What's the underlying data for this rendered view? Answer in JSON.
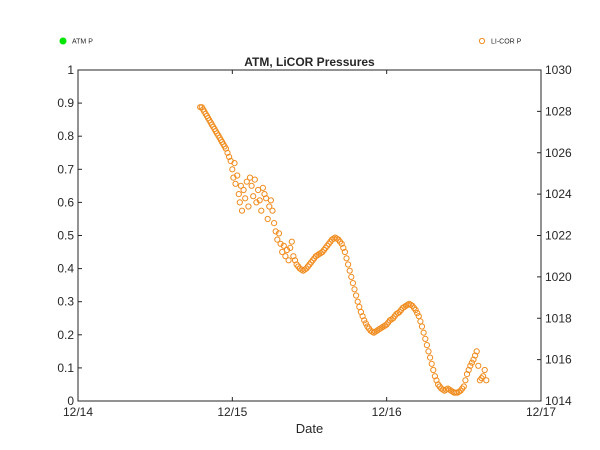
{
  "chart_data": {
    "type": "scatter",
    "title": "ATM, LiCOR Pressures",
    "xlabel": "Date",
    "ylabel_left": "",
    "ylabel_right": "",
    "x_ticks": [
      "12/14",
      "12/15",
      "12/16",
      "12/17"
    ],
    "xlim": [
      "12/14",
      "12/17"
    ],
    "y_left_ticks": [
      "0",
      "0.1",
      "0.2",
      "0.3",
      "0.4",
      "0.5",
      "0.6",
      "0.7",
      "0.8",
      "0.9",
      "1"
    ],
    "ylim_left": [
      0,
      1
    ],
    "y_right_ticks": [
      "1014",
      "1016",
      "1018",
      "1020",
      "1022",
      "1024",
      "1026",
      "1028",
      "1030"
    ],
    "ylim_right": [
      1014,
      1030
    ],
    "grid": false,
    "legend": [
      {
        "name": "ATM P",
        "color": "#00e600",
        "marker": "filled-dot",
        "placement": "top-left"
      },
      {
        "name": "LI-COR P",
        "color": "#f08c1e",
        "marker": "open-circle",
        "placement": "top-right"
      }
    ],
    "series": [
      {
        "name": "LI-COR P",
        "axis": "right",
        "color": "#f08c1e",
        "marker": "open-circle",
        "x_days_offset_note": "",
        "points": [
          [
            "12/14 19:00",
            1028.2
          ],
          [
            "12/14 19:15",
            1028.2
          ],
          [
            "12/14 23:00",
            1026.2
          ],
          [
            "12/14 23:15",
            1026.0
          ],
          [
            "12/14 23:30",
            1025.8
          ],
          [
            "12/14 23:45",
            1025.6
          ],
          [
            "12/15 00:00",
            1025.2
          ],
          [
            "12/15 00:10",
            1024.8
          ],
          [
            "12/15 00:20",
            1025.5
          ],
          [
            "12/15 00:30",
            1024.5
          ],
          [
            "12/15 00:45",
            1024.9
          ],
          [
            "12/15 01:00",
            1024.0
          ],
          [
            "12/15 01:10",
            1023.6
          ],
          [
            "12/15 01:20",
            1024.4
          ],
          [
            "12/15 01:30",
            1023.2
          ],
          [
            "12/15 01:45",
            1024.2
          ],
          [
            "12/15 02:00",
            1023.8
          ],
          [
            "12/15 02:15",
            1024.6
          ],
          [
            "12/15 02:30",
            1023.4
          ],
          [
            "12/15 02:45",
            1024.8
          ],
          [
            "12/15 03:00",
            1024.4
          ],
          [
            "12/15 03:15",
            1023.9
          ],
          [
            "12/15 03:30",
            1024.7
          ],
          [
            "12/15 03:45",
            1023.6
          ],
          [
            "12/15 04:00",
            1024.2
          ],
          [
            "12/15 04:15",
            1023.7
          ],
          [
            "12/15 04:30",
            1023.2
          ],
          [
            "12/15 04:45",
            1024.3
          ],
          [
            "12/15 05:00",
            1024.0
          ],
          [
            "12/15 05:15",
            1023.8
          ],
          [
            "12/15 05:30",
            1022.8
          ],
          [
            "12/15 05:45",
            1023.4
          ],
          [
            "12/15 06:00",
            1023.7
          ],
          [
            "12/15 06:15",
            1023.2
          ],
          [
            "12/15 06:30",
            1022.6
          ],
          [
            "12/15 06:45",
            1022.2
          ],
          [
            "12/15 07:00",
            1021.8
          ],
          [
            "12/15 07:15",
            1022.1
          ],
          [
            "12/15 07:30",
            1021.6
          ],
          [
            "12/15 07:45",
            1021.2
          ],
          [
            "12/15 08:00",
            1021.5
          ],
          [
            "12/15 08:15",
            1021.0
          ],
          [
            "12/15 08:30",
            1021.3
          ],
          [
            "12/15 08:45",
            1020.8
          ],
          [
            "12/15 09:00",
            1021.4
          ],
          [
            "12/15 09:15",
            1021.7
          ],
          [
            "12/15 09:30",
            1021.0
          ],
          [
            "12/15 09:45",
            1020.8
          ],
          [
            "12/15 10:00",
            1020.6
          ],
          [
            "12/15 10:30",
            1020.4
          ],
          [
            "12/15 11:00",
            1020.3
          ],
          [
            "12/15 11:30",
            1020.4
          ],
          [
            "12/15 12:00",
            1020.6
          ],
          [
            "12/15 12:30",
            1020.8
          ],
          [
            "12/15 13:00",
            1021.0
          ],
          [
            "12/15 13:30",
            1021.1
          ],
          [
            "12/15 14:00",
            1021.2
          ],
          [
            "12/15 14:30",
            1021.4
          ],
          [
            "12/15 15:00",
            1021.6
          ],
          [
            "12/15 15:30",
            1021.8
          ],
          [
            "12/15 16:00",
            1021.9
          ],
          [
            "12/15 16:30",
            1021.8
          ],
          [
            "12/15 17:00",
            1021.6
          ],
          [
            "12/15 17:30",
            1021.2
          ],
          [
            "12/15 18:00",
            1020.6
          ],
          [
            "12/15 18:30",
            1020.0
          ],
          [
            "12/15 19:00",
            1019.4
          ],
          [
            "12/15 19:30",
            1018.8
          ],
          [
            "12/15 20:00",
            1018.3
          ],
          [
            "12/15 20:30",
            1017.9
          ],
          [
            "12/15 21:00",
            1017.6
          ],
          [
            "12/15 21:30",
            1017.4
          ],
          [
            "12/15 22:00",
            1017.3
          ],
          [
            "12/15 22:30",
            1017.4
          ],
          [
            "12/15 23:00",
            1017.5
          ],
          [
            "12/15 23:30",
            1017.6
          ],
          [
            "12/16 00:00",
            1017.7
          ],
          [
            "12/16 00:30",
            1017.9
          ],
          [
            "12/16 01:00",
            1018.0
          ],
          [
            "12/16 01:30",
            1018.2
          ],
          [
            "12/16 02:00",
            1018.3
          ],
          [
            "12/16 02:30",
            1018.5
          ],
          [
            "12/16 03:00",
            1018.6
          ],
          [
            "12/16 03:30",
            1018.7
          ],
          [
            "12/16 04:00",
            1018.6
          ],
          [
            "12/16 04:30",
            1018.4
          ],
          [
            "12/16 05:00",
            1018.1
          ],
          [
            "12/16 05:30",
            1017.6
          ],
          [
            "12/16 06:00",
            1017.0
          ],
          [
            "12/16 06:30",
            1016.4
          ],
          [
            "12/16 07:00",
            1015.8
          ],
          [
            "12/16 07:30",
            1015.2
          ],
          [
            "12/16 08:00",
            1014.8
          ],
          [
            "12/16 08:30",
            1014.6
          ],
          [
            "12/16 09:00",
            1014.5
          ],
          [
            "12/16 09:30",
            1014.6
          ],
          [
            "12/16 10:00",
            1014.5
          ],
          [
            "12/16 10:30",
            1014.4
          ],
          [
            "12/16 11:00",
            1014.4
          ],
          [
            "12/16 11:30",
            1014.5
          ],
          [
            "12/16 12:00",
            1014.7
          ],
          [
            "12/16 12:30",
            1015.3
          ],
          [
            "12/16 13:00",
            1015.7
          ],
          [
            "12/16 13:30",
            1016.0
          ],
          [
            "12/16 14:00",
            1016.4
          ],
          [
            "12/16 14:30",
            1015.0
          ],
          [
            "12/16 15:00",
            1015.2
          ],
          [
            "12/16 15:15",
            1015.5
          ],
          [
            "12/16 15:30",
            1015.0
          ]
        ]
      }
    ]
  }
}
